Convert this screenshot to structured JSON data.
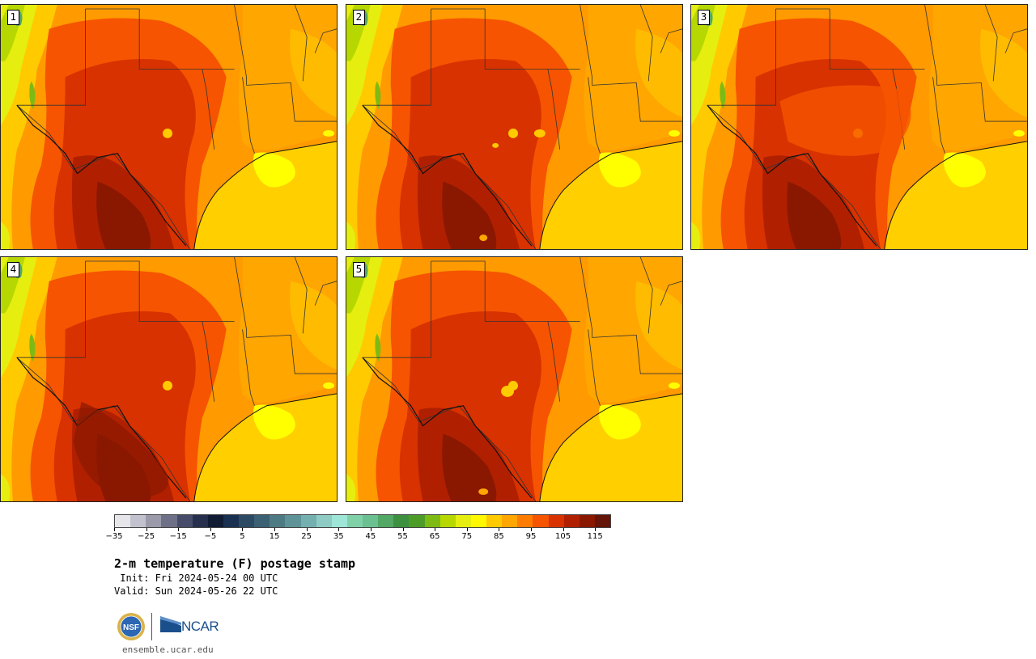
{
  "title": "2-m temperature (F) postage stamp",
  "init_line": " Init: Fri 2024-05-24 00 UTC",
  "valid_line": "Valid: Sun 2024-05-26 22 UTC",
  "members": [
    {
      "label": "1"
    },
    {
      "label": "2"
    },
    {
      "label": "3"
    },
    {
      "label": "4"
    },
    {
      "label": "5"
    }
  ],
  "colorbar": {
    "colors": [
      "#e6e6ea",
      "#c2c2ce",
      "#9a9aaa",
      "#6e7088",
      "#464c6a",
      "#26304c",
      "#101c34",
      "#1a3050",
      "#2c4a64",
      "#3c6074",
      "#4e7a84",
      "#5e9498",
      "#74b0b0",
      "#8ecbc4",
      "#9ee6d8",
      "#80d0a8",
      "#6ac090",
      "#52a864",
      "#3c9040",
      "#4e9c28",
      "#7eba14",
      "#b6d800",
      "#e6ee10",
      "#fff800",
      "#ffca00",
      "#ffa600",
      "#ff7c00",
      "#f65400",
      "#d83200",
      "#b02000",
      "#8a1800",
      "#641408"
    ],
    "tick_labels": [
      "−35",
      "−25",
      "−15",
      "−5",
      "5",
      "15",
      "25",
      "35",
      "45",
      "55",
      "65",
      "75",
      "85",
      "95",
      "105",
      "115"
    ],
    "tick_values": [
      -35,
      -25,
      -15,
      -5,
      5,
      15,
      25,
      35,
      45,
      55,
      65,
      75,
      85,
      95,
      105,
      115
    ],
    "min": -35,
    "max": 120
  },
  "logos": {
    "nsf_text": "NSF",
    "ncar_text": "NCAR"
  },
  "website": "ensemble.ucar.edu"
}
